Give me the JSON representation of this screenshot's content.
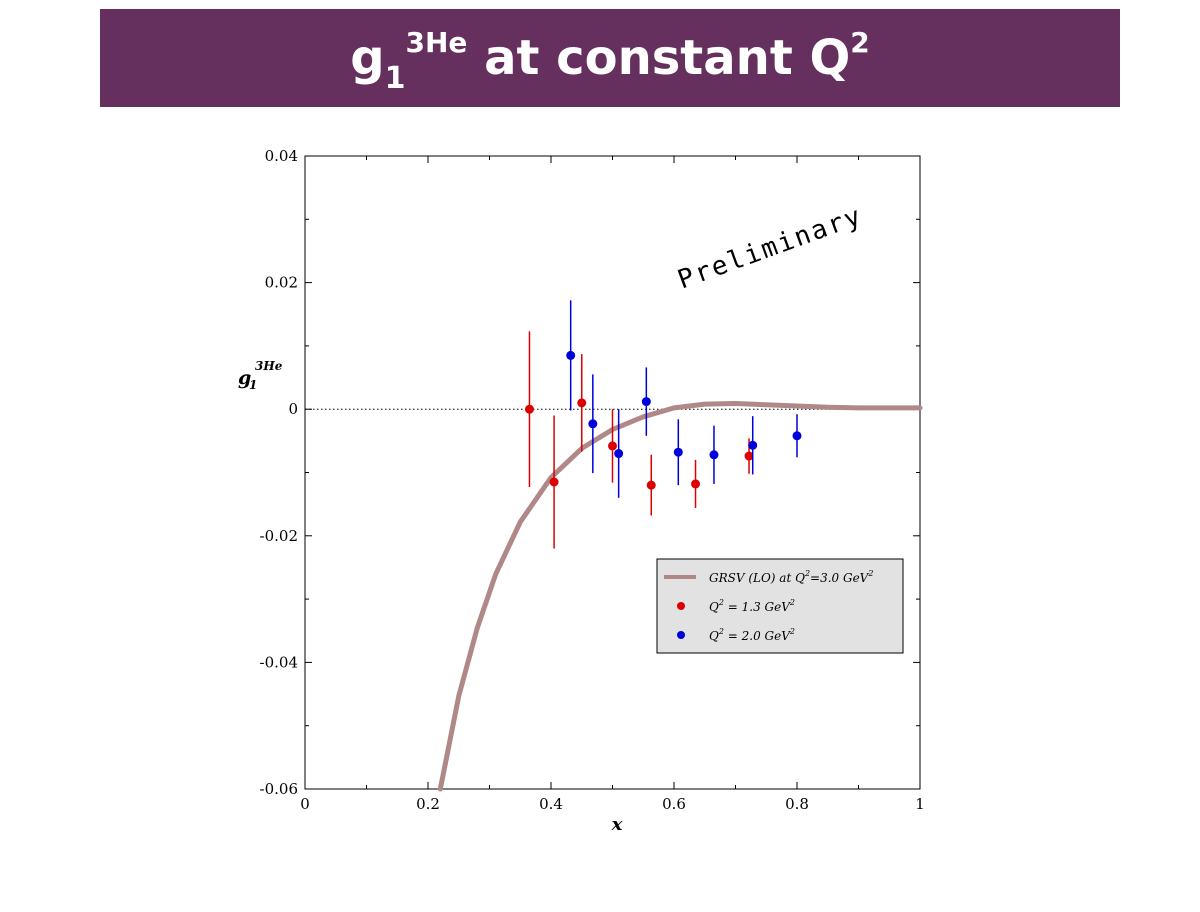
{
  "title": {
    "symbol": "g",
    "subscript": "1",
    "superscript": "3He",
    "text": " at constant Q",
    "text_superscript": "2"
  },
  "watermark": "Preliminary",
  "colors": {
    "title_bar": "#66305e",
    "series_1_3": "#dd0000",
    "series_2_0": "#0000dd",
    "curve": "#b08888",
    "legend_bg": "#e2e2e2"
  },
  "chart_data": {
    "type": "scatter",
    "xlabel": "x",
    "ylabel": {
      "symbol": "g",
      "subscript": "1",
      "superscript": "3He"
    },
    "xlim": [
      0,
      1
    ],
    "ylim": [
      -0.06,
      0.04
    ],
    "x_ticks": [
      "0",
      "0.2",
      "0.4",
      "0.6",
      "0.8",
      "1"
    ],
    "y_ticks": [
      "-0.06",
      "-0.04",
      "-0.02",
      "0",
      "0.02",
      "0.04"
    ],
    "zero_line": true,
    "grid": false,
    "legend_position": "lower-right",
    "legend": [
      {
        "text": "GRSV (LO) at Q",
        "sup": "2",
        "text2": "=3.0 GeV",
        "sup2": "2",
        "kind": "line"
      },
      {
        "text": "Q",
        "sup": "2",
        "text2": " = 1.3 GeV",
        "sup2": "2",
        "kind": "red-dot"
      },
      {
        "text": "Q",
        "sup": "2",
        "text2": " = 2.0 GeV",
        "sup2": "2",
        "kind": "blue-dot"
      }
    ],
    "series": [
      {
        "name": "Q^2 = 1.3 GeV^2",
        "points": [
          {
            "x": 0.365,
            "y": 0.0,
            "err": 0.0123
          },
          {
            "x": 0.405,
            "y": -0.0115,
            "err": 0.0105
          },
          {
            "x": 0.45,
            "y": 0.001,
            "err": 0.0077
          },
          {
            "x": 0.5,
            "y": -0.0058,
            "err": 0.0058
          },
          {
            "x": 0.563,
            "y": -0.012,
            "err": 0.0048
          },
          {
            "x": 0.635,
            "y": -0.0118,
            "err": 0.0038
          },
          {
            "x": 0.722,
            "y": -0.0074,
            "err": 0.0028
          }
        ]
      },
      {
        "name": "Q^2 = 2.0 GeV^2",
        "points": [
          {
            "x": 0.432,
            "y": 0.0085,
            "err": 0.0087
          },
          {
            "x": 0.468,
            "y": -0.0023,
            "err": 0.0078
          },
          {
            "x": 0.51,
            "y": -0.007,
            "err": 0.007
          },
          {
            "x": 0.555,
            "y": 0.0012,
            "err": 0.0054
          },
          {
            "x": 0.607,
            "y": -0.0068,
            "err": 0.0052
          },
          {
            "x": 0.665,
            "y": -0.0072,
            "err": 0.0046
          },
          {
            "x": 0.728,
            "y": -0.0057,
            "err": 0.0046
          },
          {
            "x": 0.8,
            "y": -0.0042,
            "err": 0.0034
          }
        ]
      },
      {
        "name": "GRSV (LO) at Q^2=3.0 GeV^2",
        "line": true,
        "x": [
          0.22,
          0.25,
          0.28,
          0.31,
          0.35,
          0.4,
          0.45,
          0.5,
          0.55,
          0.6,
          0.65,
          0.7,
          0.75,
          0.8,
          0.85,
          0.9,
          1.0
        ],
        "y": [
          -0.06,
          -0.0453,
          -0.0346,
          -0.0261,
          -0.0178,
          -0.0108,
          -0.0062,
          -0.0032,
          -0.0012,
          0.0002,
          0.0008,
          0.0009,
          0.0007,
          0.0005,
          0.0003,
          0.0002,
          0.0002
        ]
      }
    ]
  }
}
